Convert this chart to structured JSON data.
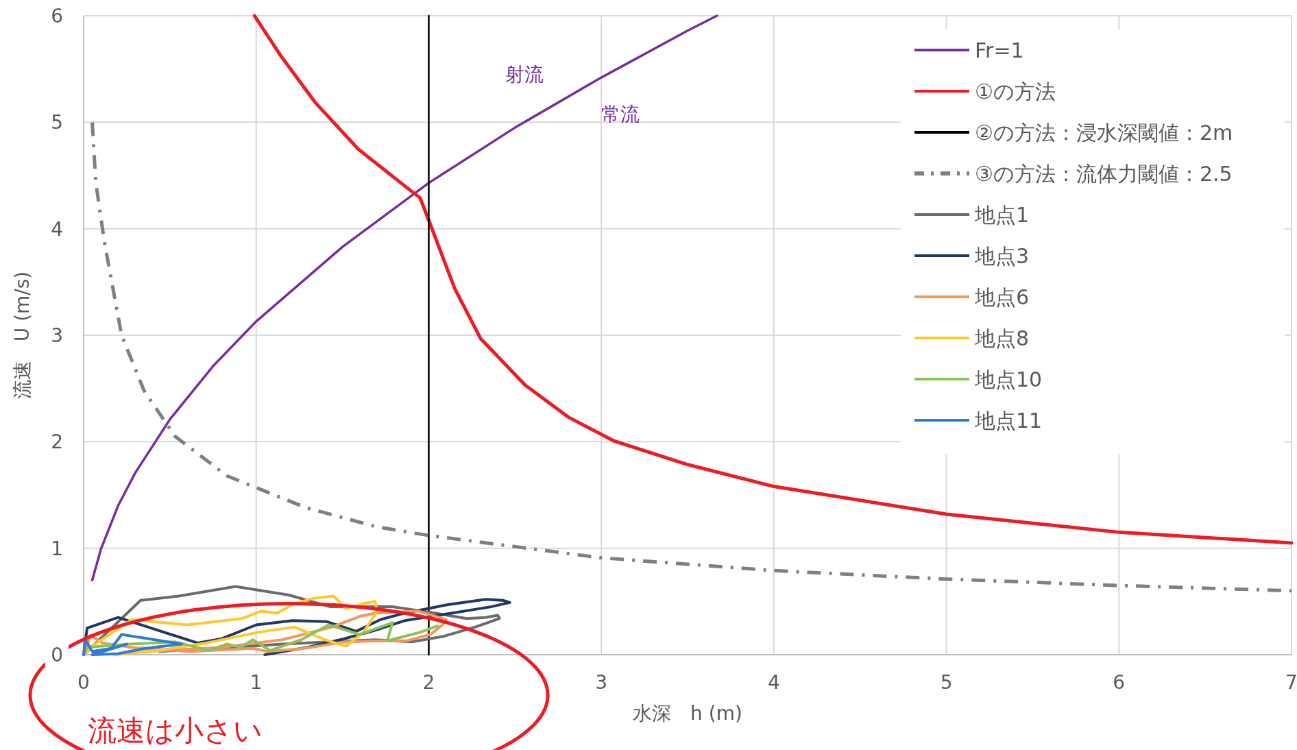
{
  "chart_data": {
    "type": "line",
    "xlabel": "水深　h (m)",
    "ylabel": "流速　U (m/s)",
    "xlim": [
      0,
      7
    ],
    "ylim": [
      0,
      6
    ],
    "xticks": [
      0,
      1,
      2,
      3,
      4,
      5,
      6,
      7
    ],
    "yticks": [
      0,
      1,
      2,
      3,
      4,
      5,
      6
    ],
    "grid": true,
    "legend": "top right",
    "marker": "none",
    "series": [
      {
        "name": "Fr=1",
        "color": "#7030a0",
        "x": [
          0.05,
          0.1,
          0.2,
          0.3,
          0.5,
          0.75,
          1,
          1.5,
          2,
          2.5,
          3,
          3.5,
          3.67
        ],
        "values": [
          0.7,
          0.99,
          1.4,
          1.71,
          2.21,
          2.71,
          3.13,
          3.83,
          4.43,
          4.95,
          5.42,
          5.86,
          6.0
        ]
      },
      {
        "name": "①の方法",
        "color": "#ed1c24",
        "x": [
          0.99,
          1.14,
          1.34,
          1.59,
          1.8,
          1.91,
          1.95,
          2.0,
          2.15,
          2.3,
          2.56,
          2.81,
          3.07,
          3.49,
          4,
          5,
          6,
          7
        ],
        "values": [
          6.0,
          5.63,
          5.19,
          4.75,
          4.48,
          4.34,
          4.29,
          4.08,
          3.44,
          2.97,
          2.53,
          2.23,
          2.01,
          1.79,
          1.58,
          1.32,
          1.15,
          1.05
        ]
      },
      {
        "name": "②の方法：浸水深閾値：2m",
        "color": "#000000",
        "x": [
          2,
          2
        ],
        "values": [
          0,
          6
        ]
      },
      {
        "name": "③の方法：流体力閾値：2.5",
        "color": "#808080",
        "line_style": "dashed",
        "x": [
          0.05,
          0.07,
          0.12,
          0.22,
          0.35,
          0.53,
          0.83,
          1.29,
          1.7,
          2,
          3,
          4,
          5,
          6,
          7
        ],
        "values": [
          5.0,
          4.44,
          3.88,
          3.0,
          2.48,
          2.05,
          1.68,
          1.38,
          1.2,
          1.12,
          0.91,
          0.79,
          0.71,
          0.65,
          0.6
        ]
      },
      {
        "name": "地点1",
        "color": "#6b6b6b",
        "x": [
          0,
          0.33,
          0.55,
          0.88,
          1.19,
          1.43,
          1.79,
          2.04,
          2.22,
          2.33,
          2.4,
          2.41,
          2.27,
          2.08,
          1.9,
          1.69,
          1.42,
          1.15,
          0.87,
          0.44
        ],
        "values": [
          0,
          0.51,
          0.55,
          0.64,
          0.56,
          0.45,
          0.45,
          0.39,
          0.34,
          0.35,
          0.37,
          0.34,
          0.26,
          0.17,
          0.12,
          0.14,
          0.12,
          0.1,
          0.07,
          0.03
        ]
      },
      {
        "name": "地点3",
        "color": "#203864",
        "x": [
          0,
          0.02,
          0.2,
          0.66,
          0.8,
          1.0,
          1.21,
          1.41,
          1.58,
          1.72,
          1.86,
          2.11,
          2.33,
          2.43,
          2.47,
          2.36,
          2.13,
          1.86,
          1.69,
          1.51,
          1.3,
          1.05
        ],
        "values": [
          0,
          0.25,
          0.35,
          0.11,
          0.15,
          0.28,
          0.32,
          0.31,
          0.22,
          0.33,
          0.39,
          0.47,
          0.52,
          0.51,
          0.49,
          0.45,
          0.39,
          0.32,
          0.23,
          0.15,
          0.07,
          0
        ]
      },
      {
        "name": "地点6",
        "color": "#f4975a",
        "x": [
          0,
          0.04,
          0.11,
          0.27,
          0.62,
          0.98,
          1.07,
          1.28,
          1.51,
          1.69,
          1.87,
          2.01,
          2.08,
          2.1,
          1.94,
          1.69,
          1.6,
          1.44,
          1.15,
          0.8,
          0.36
        ],
        "values": [
          0,
          0.18,
          0.11,
          0.07,
          0.03,
          0.06,
          0.03,
          0.06,
          0.12,
          0.13,
          0.13,
          0.19,
          0.28,
          0.33,
          0.41,
          0.39,
          0.36,
          0.26,
          0.14,
          0.07,
          0.03
        ]
      },
      {
        "name": "地点8",
        "color": "#ffc92e",
        "x": [
          0,
          0.04,
          0.28,
          0.6,
          0.92,
          1.03,
          1.12,
          1.21,
          1.33,
          1.45,
          1.52,
          1.62,
          1.69,
          1.7,
          1.62,
          1.52,
          1.4,
          1.22,
          1.01,
          0.71,
          0.44,
          0.18
        ],
        "values": [
          0,
          0.07,
          0.33,
          0.28,
          0.34,
          0.41,
          0.39,
          0.47,
          0.53,
          0.55,
          0.43,
          0.48,
          0.5,
          0.4,
          0.21,
          0.08,
          0.14,
          0.26,
          0.21,
          0.11,
          0.04,
          0
        ]
      },
      {
        "name": "地点10",
        "color": "#8bc35a",
        "x": [
          0,
          0.02,
          0.27,
          0.53,
          0.73,
          0.83,
          0.91,
          0.98,
          1.01,
          1.08,
          1.26,
          1.42,
          1.6,
          1.79,
          1.76,
          1.95,
          2.05
        ],
        "values": [
          0,
          0.07,
          0.1,
          0.12,
          0.04,
          0.1,
          0.07,
          0.14,
          0.11,
          0.04,
          0.14,
          0.28,
          0.19,
          0.3,
          0.13,
          0.21,
          0.27
        ]
      },
      {
        "name": "地点11",
        "color": "#2e7dd1",
        "x": [
          0,
          0.01,
          0.05,
          0.16,
          0.22,
          0.57,
          0.36,
          0.2,
          0.05,
          0.25
        ],
        "values": [
          0,
          0.14,
          0.03,
          0.06,
          0.19,
          0.1,
          0.06,
          0.01,
          0,
          0.1
        ]
      }
    ],
    "annotations": [
      "射流",
      "常流",
      "流速は小さい"
    ]
  }
}
